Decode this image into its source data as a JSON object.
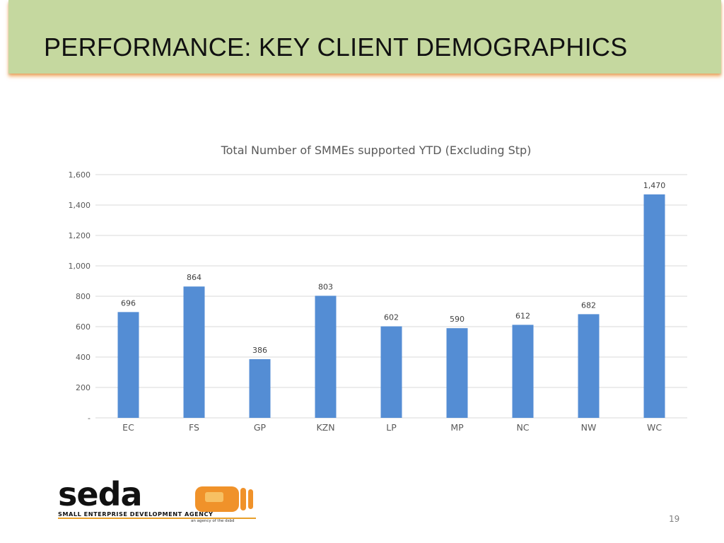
{
  "slide": {
    "title": "PERFORMANCE: KEY CLIENT DEMOGRAPHICS",
    "slide_number": "19",
    "banner_color": "#c5d89f",
    "banner_shadow_color": "#f0963c"
  },
  "logo": {
    "wordmark": "seda",
    "agency_name": "SMALL ENTERPRISE DEVELOPMENT AGENCY",
    "tagline": "an agency of the dsbd",
    "mark_color": "#f0922a"
  },
  "chart_data": {
    "type": "bar",
    "title": "Total Number of SMMEs supported YTD (Excluding Stp)",
    "xlabel": "",
    "ylabel": "",
    "categories": [
      "EC",
      "FS",
      "GP",
      "KZN",
      "LP",
      "MP",
      "NC",
      "NW",
      "WC"
    ],
    "values": [
      696,
      864,
      386,
      803,
      602,
      590,
      612,
      682,
      1470
    ],
    "data_labels": [
      "696",
      "864",
      "386",
      "803",
      "602",
      "590",
      "612",
      "682",
      "1,470"
    ],
    "ylim": [
      0,
      1600
    ],
    "yticks": [
      0,
      200,
      400,
      600,
      800,
      1000,
      1200,
      1400,
      1600
    ],
    "ytick_labels": [
      "-",
      "200",
      "400",
      "600",
      "800",
      "1,000",
      "1,200",
      "1,400",
      "1,600"
    ],
    "grid": true,
    "legend": "none",
    "bar_color": "#548dd4",
    "gridline_color": "#d9d9d9"
  }
}
